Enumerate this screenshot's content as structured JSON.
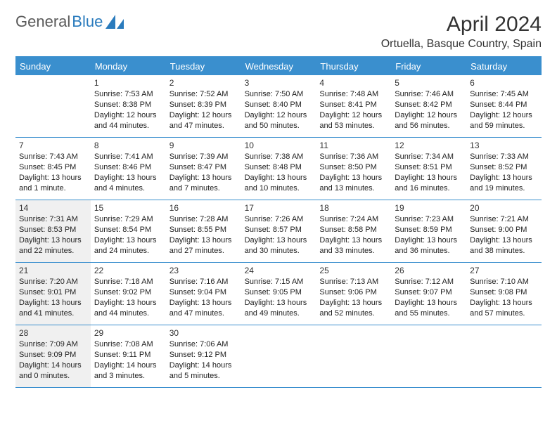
{
  "logo": {
    "word1": "General",
    "word2": "Blue"
  },
  "title": "April 2024",
  "location": "Ortuella, Basque Country, Spain",
  "colors": {
    "header_bg": "#3a8fce",
    "header_text": "#ffffff",
    "logo_gray": "#5a5a5a",
    "logo_blue": "#2a7bbd",
    "text": "#222222",
    "faded_bg": "#f0f0f0"
  },
  "day_names": [
    "Sunday",
    "Monday",
    "Tuesday",
    "Wednesday",
    "Thursday",
    "Friday",
    "Saturday"
  ],
  "weeks": [
    [
      {
        "num": "",
        "sunrise": "",
        "sunset": "",
        "day1": "",
        "day2": "",
        "faded": false
      },
      {
        "num": "1",
        "sunrise": "Sunrise: 7:53 AM",
        "sunset": "Sunset: 8:38 PM",
        "day1": "Daylight: 12 hours",
        "day2": "and 44 minutes.",
        "faded": false
      },
      {
        "num": "2",
        "sunrise": "Sunrise: 7:52 AM",
        "sunset": "Sunset: 8:39 PM",
        "day1": "Daylight: 12 hours",
        "day2": "and 47 minutes.",
        "faded": false
      },
      {
        "num": "3",
        "sunrise": "Sunrise: 7:50 AM",
        "sunset": "Sunset: 8:40 PM",
        "day1": "Daylight: 12 hours",
        "day2": "and 50 minutes.",
        "faded": false
      },
      {
        "num": "4",
        "sunrise": "Sunrise: 7:48 AM",
        "sunset": "Sunset: 8:41 PM",
        "day1": "Daylight: 12 hours",
        "day2": "and 53 minutes.",
        "faded": false
      },
      {
        "num": "5",
        "sunrise": "Sunrise: 7:46 AM",
        "sunset": "Sunset: 8:42 PM",
        "day1": "Daylight: 12 hours",
        "day2": "and 56 minutes.",
        "faded": false
      },
      {
        "num": "6",
        "sunrise": "Sunrise: 7:45 AM",
        "sunset": "Sunset: 8:44 PM",
        "day1": "Daylight: 12 hours",
        "day2": "and 59 minutes.",
        "faded": false
      }
    ],
    [
      {
        "num": "7",
        "sunrise": "Sunrise: 7:43 AM",
        "sunset": "Sunset: 8:45 PM",
        "day1": "Daylight: 13 hours",
        "day2": "and 1 minute.",
        "faded": false
      },
      {
        "num": "8",
        "sunrise": "Sunrise: 7:41 AM",
        "sunset": "Sunset: 8:46 PM",
        "day1": "Daylight: 13 hours",
        "day2": "and 4 minutes.",
        "faded": false
      },
      {
        "num": "9",
        "sunrise": "Sunrise: 7:39 AM",
        "sunset": "Sunset: 8:47 PM",
        "day1": "Daylight: 13 hours",
        "day2": "and 7 minutes.",
        "faded": false
      },
      {
        "num": "10",
        "sunrise": "Sunrise: 7:38 AM",
        "sunset": "Sunset: 8:48 PM",
        "day1": "Daylight: 13 hours",
        "day2": "and 10 minutes.",
        "faded": false
      },
      {
        "num": "11",
        "sunrise": "Sunrise: 7:36 AM",
        "sunset": "Sunset: 8:50 PM",
        "day1": "Daylight: 13 hours",
        "day2": "and 13 minutes.",
        "faded": false
      },
      {
        "num": "12",
        "sunrise": "Sunrise: 7:34 AM",
        "sunset": "Sunset: 8:51 PM",
        "day1": "Daylight: 13 hours",
        "day2": "and 16 minutes.",
        "faded": false
      },
      {
        "num": "13",
        "sunrise": "Sunrise: 7:33 AM",
        "sunset": "Sunset: 8:52 PM",
        "day1": "Daylight: 13 hours",
        "day2": "and 19 minutes.",
        "faded": false
      }
    ],
    [
      {
        "num": "14",
        "sunrise": "Sunrise: 7:31 AM",
        "sunset": "Sunset: 8:53 PM",
        "day1": "Daylight: 13 hours",
        "day2": "and 22 minutes.",
        "faded": true
      },
      {
        "num": "15",
        "sunrise": "Sunrise: 7:29 AM",
        "sunset": "Sunset: 8:54 PM",
        "day1": "Daylight: 13 hours",
        "day2": "and 24 minutes.",
        "faded": false
      },
      {
        "num": "16",
        "sunrise": "Sunrise: 7:28 AM",
        "sunset": "Sunset: 8:55 PM",
        "day1": "Daylight: 13 hours",
        "day2": "and 27 minutes.",
        "faded": false
      },
      {
        "num": "17",
        "sunrise": "Sunrise: 7:26 AM",
        "sunset": "Sunset: 8:57 PM",
        "day1": "Daylight: 13 hours",
        "day2": "and 30 minutes.",
        "faded": false
      },
      {
        "num": "18",
        "sunrise": "Sunrise: 7:24 AM",
        "sunset": "Sunset: 8:58 PM",
        "day1": "Daylight: 13 hours",
        "day2": "and 33 minutes.",
        "faded": false
      },
      {
        "num": "19",
        "sunrise": "Sunrise: 7:23 AM",
        "sunset": "Sunset: 8:59 PM",
        "day1": "Daylight: 13 hours",
        "day2": "and 36 minutes.",
        "faded": false
      },
      {
        "num": "20",
        "sunrise": "Sunrise: 7:21 AM",
        "sunset": "Sunset: 9:00 PM",
        "day1": "Daylight: 13 hours",
        "day2": "and 38 minutes.",
        "faded": false
      }
    ],
    [
      {
        "num": "21",
        "sunrise": "Sunrise: 7:20 AM",
        "sunset": "Sunset: 9:01 PM",
        "day1": "Daylight: 13 hours",
        "day2": "and 41 minutes.",
        "faded": true
      },
      {
        "num": "22",
        "sunrise": "Sunrise: 7:18 AM",
        "sunset": "Sunset: 9:02 PM",
        "day1": "Daylight: 13 hours",
        "day2": "and 44 minutes.",
        "faded": false
      },
      {
        "num": "23",
        "sunrise": "Sunrise: 7:16 AM",
        "sunset": "Sunset: 9:04 PM",
        "day1": "Daylight: 13 hours",
        "day2": "and 47 minutes.",
        "faded": false
      },
      {
        "num": "24",
        "sunrise": "Sunrise: 7:15 AM",
        "sunset": "Sunset: 9:05 PM",
        "day1": "Daylight: 13 hours",
        "day2": "and 49 minutes.",
        "faded": false
      },
      {
        "num": "25",
        "sunrise": "Sunrise: 7:13 AM",
        "sunset": "Sunset: 9:06 PM",
        "day1": "Daylight: 13 hours",
        "day2": "and 52 minutes.",
        "faded": false
      },
      {
        "num": "26",
        "sunrise": "Sunrise: 7:12 AM",
        "sunset": "Sunset: 9:07 PM",
        "day1": "Daylight: 13 hours",
        "day2": "and 55 minutes.",
        "faded": false
      },
      {
        "num": "27",
        "sunrise": "Sunrise: 7:10 AM",
        "sunset": "Sunset: 9:08 PM",
        "day1": "Daylight: 13 hours",
        "day2": "and 57 minutes.",
        "faded": false
      }
    ],
    [
      {
        "num": "28",
        "sunrise": "Sunrise: 7:09 AM",
        "sunset": "Sunset: 9:09 PM",
        "day1": "Daylight: 14 hours",
        "day2": "and 0 minutes.",
        "faded": true
      },
      {
        "num": "29",
        "sunrise": "Sunrise: 7:08 AM",
        "sunset": "Sunset: 9:11 PM",
        "day1": "Daylight: 14 hours",
        "day2": "and 3 minutes.",
        "faded": false
      },
      {
        "num": "30",
        "sunrise": "Sunrise: 7:06 AM",
        "sunset": "Sunset: 9:12 PM",
        "day1": "Daylight: 14 hours",
        "day2": "and 5 minutes.",
        "faded": false
      },
      {
        "num": "",
        "sunrise": "",
        "sunset": "",
        "day1": "",
        "day2": "",
        "faded": false
      },
      {
        "num": "",
        "sunrise": "",
        "sunset": "",
        "day1": "",
        "day2": "",
        "faded": false
      },
      {
        "num": "",
        "sunrise": "",
        "sunset": "",
        "day1": "",
        "day2": "",
        "faded": false
      },
      {
        "num": "",
        "sunrise": "",
        "sunset": "",
        "day1": "",
        "day2": "",
        "faded": false
      }
    ]
  ]
}
